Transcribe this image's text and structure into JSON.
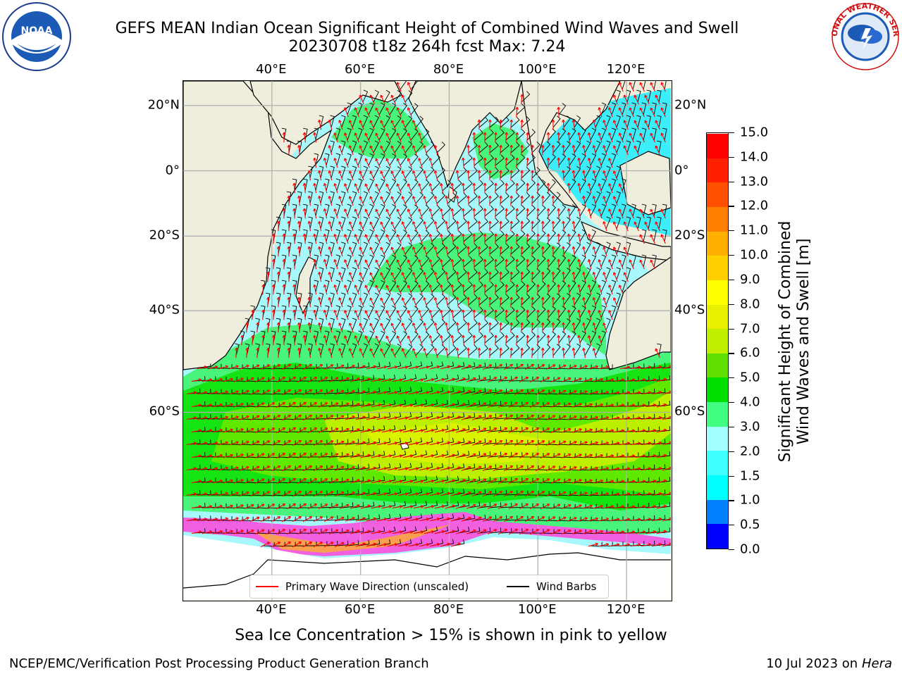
{
  "header": {
    "title_line1": "GEFS MEAN Indian Ocean Significant Height of Combined Wind Waves and Swell",
    "title_line2": "20230708 t18z 264h fcst   Max: 7.24"
  },
  "logos": {
    "left": "NOAA",
    "right": "NATIONAL WEATHER SERVICE"
  },
  "map": {
    "lon_labels": [
      "40°E",
      "60°E",
      "80°E",
      "100°E",
      "120°E"
    ],
    "lat_labels": [
      "20°N",
      "0°",
      "20°S",
      "40°S",
      "60°S"
    ],
    "lon_range": [
      20,
      130
    ],
    "lat_range": [
      -79,
      27
    ],
    "grid": true,
    "legend": {
      "wave": "Primary Wave Direction (unscaled)",
      "barbs": "Wind Barbs"
    },
    "colors": {
      "land": "#efeedd",
      "grid": "#b0b0b0",
      "wave_arrow": "#ff0000",
      "barb": "#000000"
    }
  },
  "colorbar": {
    "title_line1": "Significant Height of Combined",
    "title_line2": "Wind Waves and Swell [m]",
    "ticks": [
      "0.0",
      "0.5",
      "1.0",
      "1.5",
      "2.0",
      "3.0",
      "4.0",
      "5.0",
      "6.0",
      "7.0",
      "8.0",
      "9.0",
      "10.0",
      "11.0",
      "12.0",
      "13.0",
      "14.0",
      "15.0"
    ],
    "colors": [
      "#0000ff",
      "#0080ff",
      "#00ffff",
      "#40ffff",
      "#a0ffff",
      "#40ff80",
      "#00e000",
      "#60e000",
      "#c0f000",
      "#e8f000",
      "#ffff00",
      "#ffd000",
      "#ffb000",
      "#ff8000",
      "#ff5000",
      "#ff2000",
      "#ff0000"
    ]
  },
  "footer": {
    "sea_ice_note": "Sea Ice Concentration > 15% is shown in pink to yellow",
    "credit": "NCEP/EMC/Verification Post Processing Product Generation Branch",
    "date_prefix": "10 Jul 2023 on",
    "host": "Hera"
  }
}
